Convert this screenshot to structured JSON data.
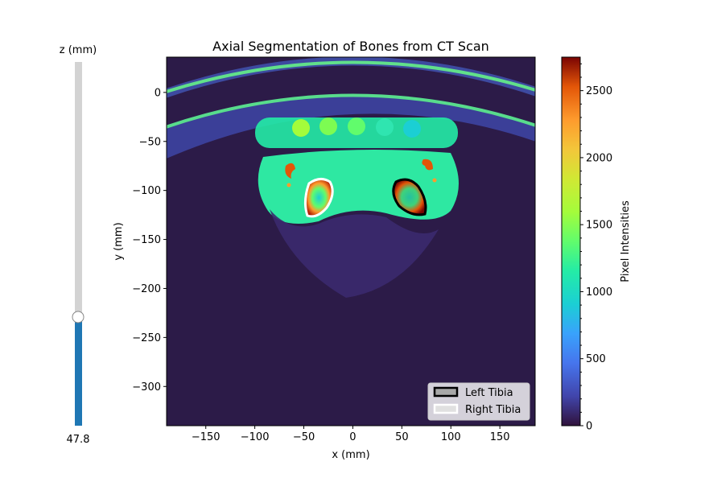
{
  "chart_data": {
    "type": "heatmap",
    "title": "Axial Segmentation of Bones from CT Scan",
    "xlabel": "x (mm)",
    "ylabel": "y (mm)",
    "xlim": [
      -190,
      186
    ],
    "ylim": [
      -340,
      36
    ],
    "xticks": [
      -150,
      -100,
      -50,
      0,
      50,
      100,
      150
    ],
    "yticks": [
      0,
      -50,
      -100,
      -150,
      -200,
      -250,
      -300
    ],
    "colorbar": {
      "label": "Pixel Intensities",
      "min": 0,
      "max": 2750,
      "ticks": [
        0,
        500,
        1000,
        1500,
        2000,
        2500
      ],
      "colormap": "turbo"
    },
    "legend": {
      "placement": "lower-right",
      "entries": [
        {
          "label": "Left Tibia",
          "edge": "#000000",
          "face": "#a8a8a8"
        },
        {
          "label": "Right Tibia",
          "edge": "#ffffff",
          "face": "#e0e0e0"
        }
      ]
    },
    "slider": {
      "label": "z (mm)",
      "value": 47.8,
      "value_text": "47.8",
      "min": 0,
      "max": 160,
      "fill_color": "#1f77b4",
      "track_color": "#d3d3d3"
    },
    "regions": [
      {
        "name": "Left Tibia",
        "center": [
          55,
          -108
        ],
        "intensity": 900
      },
      {
        "name": "Right Tibia",
        "center": [
          -33,
          -108
        ],
        "intensity": 1400
      }
    ]
  }
}
